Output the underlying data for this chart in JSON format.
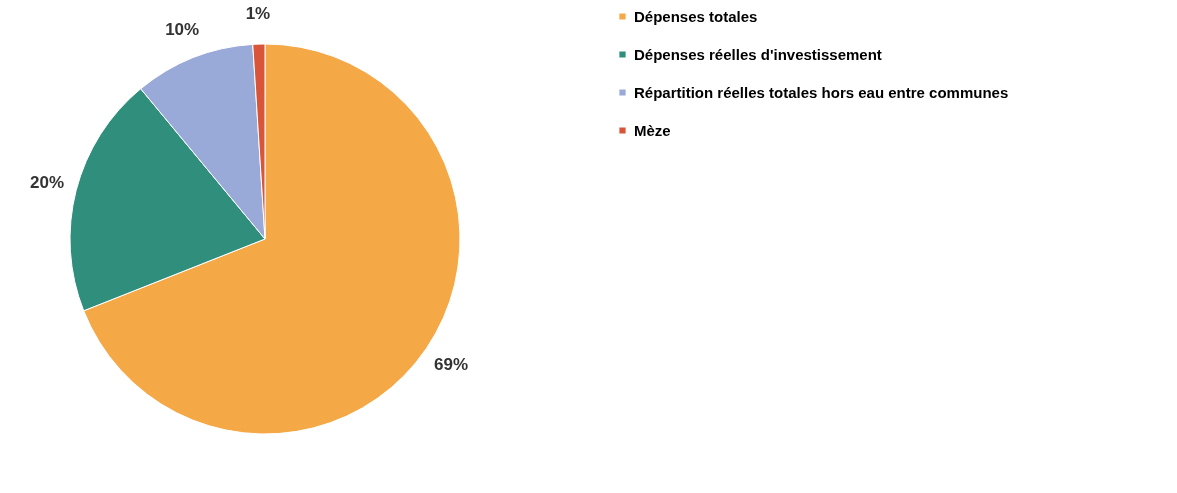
{
  "chart_data": {
    "type": "pie",
    "categories": [
      "Dépenses totales",
      "Dépenses réelles d'investissement",
      "Répartition réelles totales hors eau entre communes",
      "Mèze"
    ],
    "values": [
      69,
      20,
      10,
      1
    ],
    "colors": [
      "#f5a846",
      "#2f8f7c",
      "#9aaad8",
      "#d9553a"
    ],
    "value_labels": [
      "69%",
      "20%",
      "10%",
      "1%"
    ],
    "legend": "right"
  }
}
